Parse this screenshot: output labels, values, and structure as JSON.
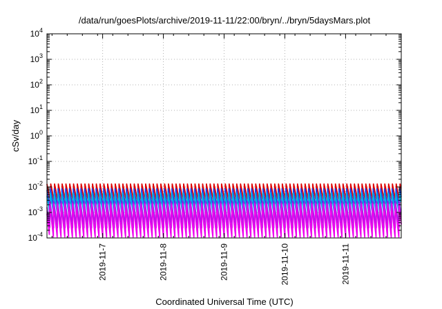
{
  "chart_data": {
    "type": "line",
    "title": "/data/run/goesPlots/archive/2019-11-11/22:00/bryn/../bryn/5daysMars.plot",
    "xlabel": "Coordinated Universal Time (UTC)",
    "ylabel": "cSv/day",
    "yscale": "log",
    "ylim": [
      0.0001,
      10000
    ],
    "xlim": [
      "2019-11-06T02:00",
      "2019-11-11T22:00"
    ],
    "grid": true,
    "legend": "none",
    "y_ticks": [
      {
        "base": "10",
        "exp": "-4",
        "value": 0.0001
      },
      {
        "base": "10",
        "exp": "-3",
        "value": 0.001
      },
      {
        "base": "10",
        "exp": "-2",
        "value": 0.01
      },
      {
        "base": "10",
        "exp": "-1",
        "value": 0.1
      },
      {
        "base": "10",
        "exp": "0",
        "value": 1
      },
      {
        "base": "10",
        "exp": "1",
        "value": 10
      },
      {
        "base": "10",
        "exp": "2",
        "value": 100
      },
      {
        "base": "10",
        "exp": "3",
        "value": 1000
      },
      {
        "base": "10",
        "exp": "4",
        "value": 10000
      }
    ],
    "x_ticks": [
      {
        "label": "2019-11-7",
        "date": "2019-11-07T00:00"
      },
      {
        "label": "2019-11-8",
        "date": "2019-11-08T00:00"
      },
      {
        "label": "2019-11-9",
        "date": "2019-11-09T00:00"
      },
      {
        "label": "2019-11-10",
        "date": "2019-11-10T00:00"
      },
      {
        "label": "2019-11-11",
        "date": "2019-11-11T00:00"
      }
    ],
    "series": [
      {
        "color": "#dd0000",
        "period_hours": 1.5,
        "phase_hours": 0.0,
        "peak": 0.013,
        "trough": 0.0023
      },
      {
        "color": "#1a3fe6",
        "period_hours": 1.5,
        "phase_hours": 0.1,
        "peak": 0.0085,
        "trough": 0.0012
      },
      {
        "color": "#00b4e6",
        "period_hours": 1.5,
        "phase_hours": 0.2,
        "peak": 0.0058,
        "trough": 0.0007
      },
      {
        "color": "#8a2be2",
        "period_hours": 1.5,
        "phase_hours": 0.35,
        "peak": 0.0028,
        "trough": 0.00025
      },
      {
        "color": "#ee00ee",
        "period_hours": 1.5,
        "phase_hours": 0.45,
        "peak": 0.0022,
        "trough": 0.00011
      }
    ]
  }
}
